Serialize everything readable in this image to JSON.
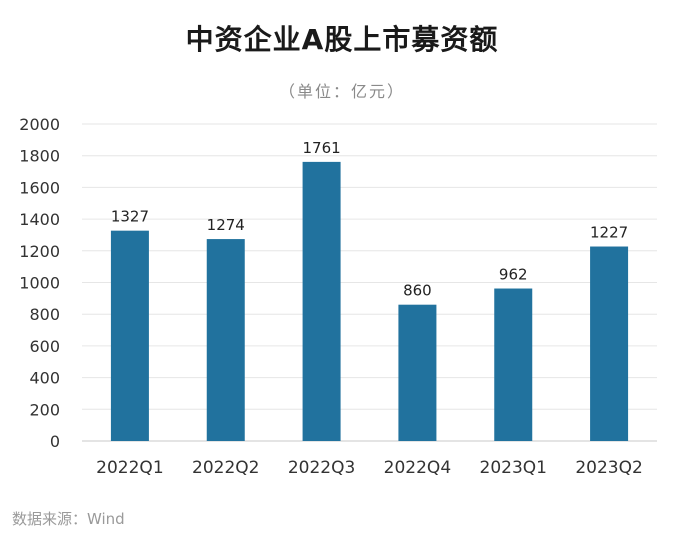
{
  "chart_data": {
    "type": "bar",
    "title": "中资企业A股上市募资额",
    "subtitle": "（单位：亿元）",
    "categories": [
      "2022Q1",
      "2022Q2",
      "2022Q3",
      "2022Q4",
      "2023Q1",
      "2023Q2"
    ],
    "values": [
      1327,
      1274,
      1761,
      860,
      962,
      1227
    ],
    "ylim": [
      0,
      2000
    ],
    "yticks": [
      0,
      200,
      400,
      600,
      800,
      1000,
      1200,
      1400,
      1600,
      1800,
      2000
    ],
    "grid": true,
    "legend": "none",
    "bar_color": "#21729e",
    "grid_color": "#e6e6e6",
    "axis_color": "#c8c8c8"
  },
  "source_note": "数据来源：Wind"
}
